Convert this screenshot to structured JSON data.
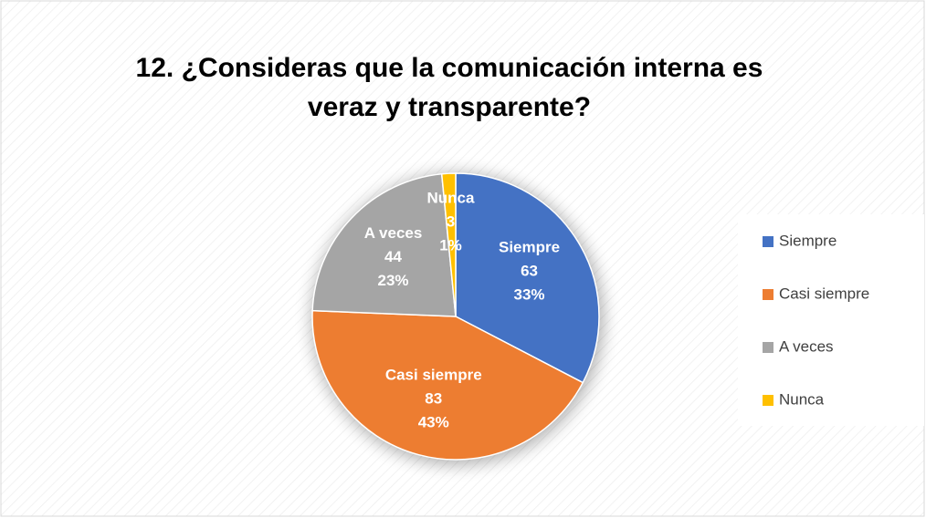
{
  "chart_data": {
    "type": "pie",
    "title": "12. ¿Consideras que la comunicación interna es veraz y transparente?",
    "categories": [
      "Siempre",
      "Casi siempre",
      "A veces",
      "Nunca"
    ],
    "values": [
      63,
      83,
      44,
      3
    ],
    "value_labels": [
      "33%",
      "43%",
      "23%",
      "1%"
    ],
    "colors": [
      "#4472c4",
      "#ed7d31",
      "#a5a5a5",
      "#ffc000"
    ],
    "legend": "right"
  }
}
